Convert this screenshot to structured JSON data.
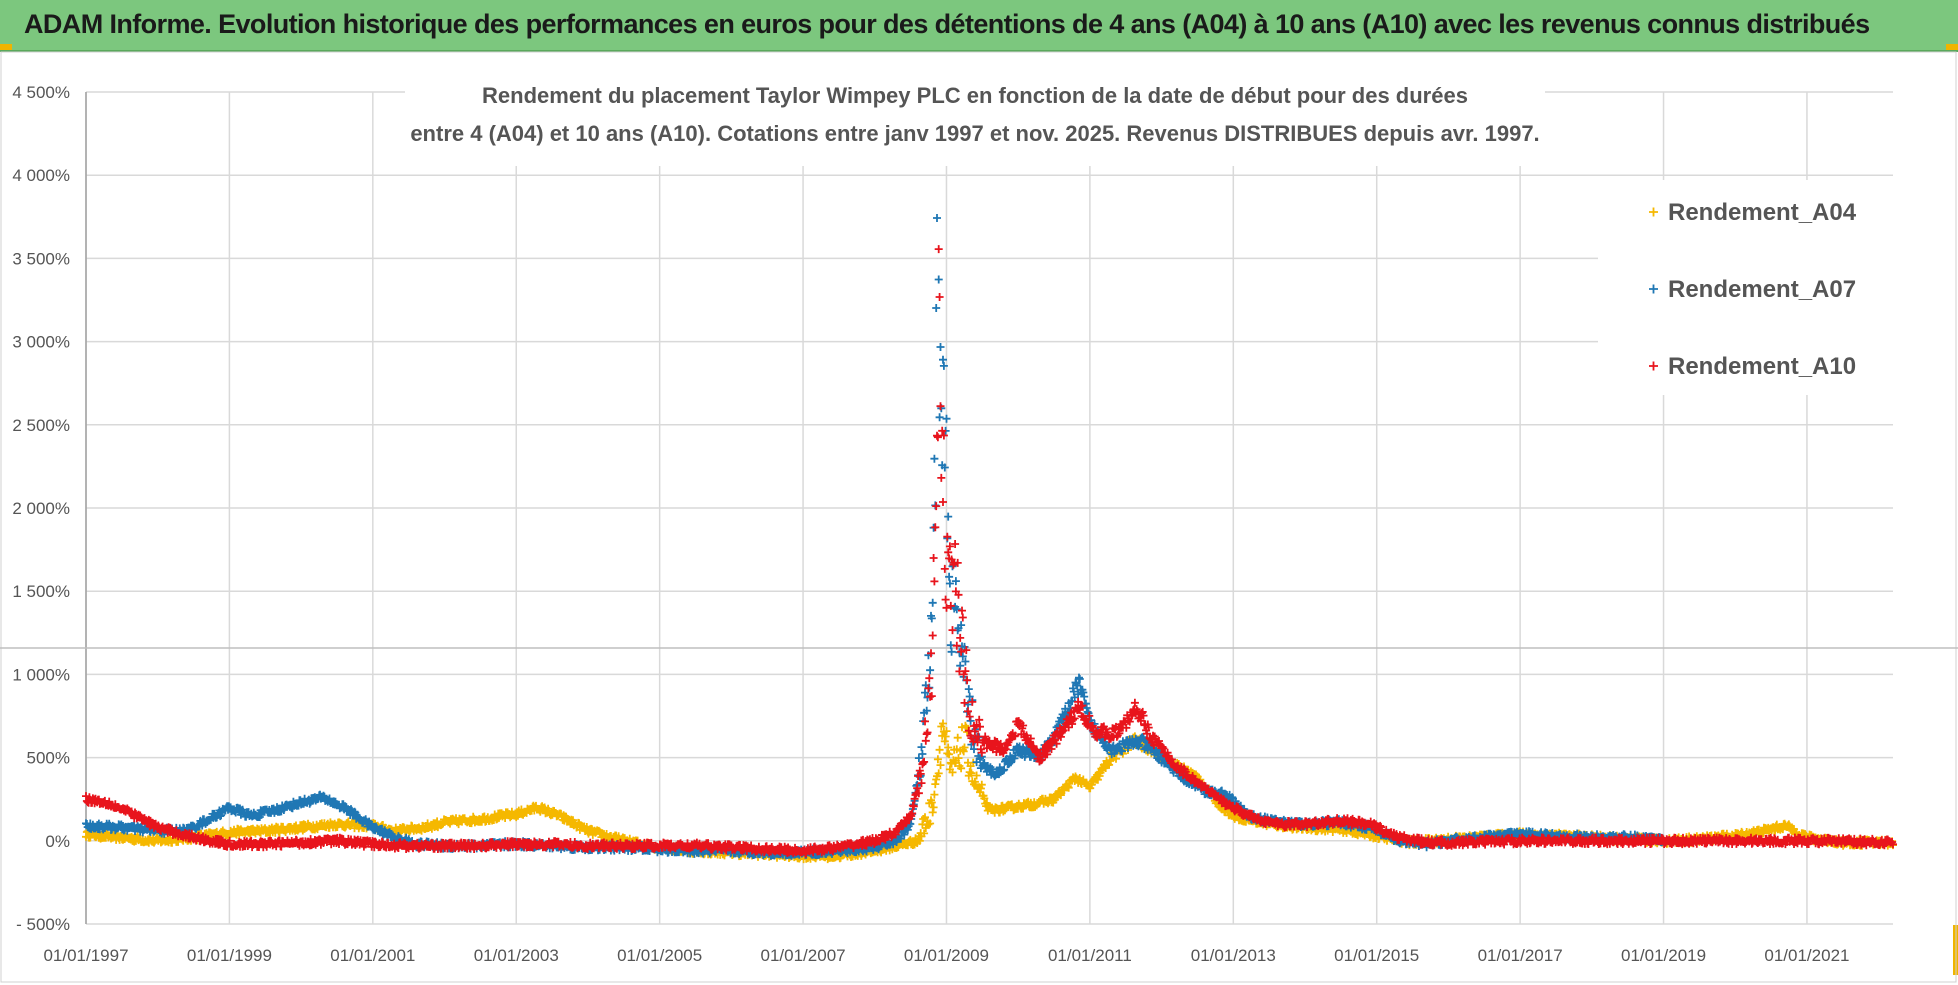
{
  "header": {
    "title": "ADAM Informe. Evolution historique des performances en euros pour des détentions de 4 ans (A04) à 10 ans (A10) avec les revenus connus distribués"
  },
  "colors": {
    "A04": "#f5b800",
    "A07": "#1f77b4",
    "A10": "#e8141c",
    "header_bg": "#7cc77e",
    "grid": "#d9d9d9"
  },
  "chart_data": {
    "type": "scatter",
    "title_line1": "Rendement du placement Taylor Wimpey PLC en fonction de la date de début pour des durées",
    "title_line2": "entre 4 (A04) et 10 ans (A10).  Cotations entre janv 1997 et nov. 2025. Revenus DISTRIBUES depuis avr. 1997.",
    "xlabel": "",
    "ylabel": "",
    "x_range": [
      1997.0,
      2022.2
    ],
    "ylim": [
      -500,
      4500
    ],
    "y_ticks": [
      -500,
      0,
      500,
      1000,
      1500,
      2000,
      2500,
      3000,
      3500,
      4000,
      4500
    ],
    "y_tick_labels": [
      "- 500%",
      "0%",
      "500%",
      "1 000%",
      "1 500%",
      "2 000%",
      "2 500%",
      "3 000%",
      "3 500%",
      "4 000%",
      "4 500%"
    ],
    "x_ticks": [
      1997,
      1999,
      2001,
      2003,
      2005,
      2007,
      2009,
      2011,
      2013,
      2015,
      2017,
      2019,
      2021
    ],
    "x_tick_labels": [
      "01/01/1997",
      "01/01/1999",
      "01/01/2001",
      "01/01/2003",
      "01/01/2005",
      "01/01/2007",
      "01/01/2009",
      "01/01/2011",
      "01/01/2013",
      "01/01/2015",
      "01/01/2017",
      "01/01/2019",
      "01/01/2021"
    ],
    "legend_position": "top-right",
    "series": [
      {
        "name": "Rendement_A04",
        "key": "A04",
        "x_end": 2022.2,
        "points": [
          [
            1997.0,
            40
          ],
          [
            1997.5,
            20
          ],
          [
            1998.0,
            0
          ],
          [
            1998.5,
            20
          ],
          [
            1999.0,
            50
          ],
          [
            1999.5,
            60
          ],
          [
            2000.0,
            80
          ],
          [
            2000.5,
            100
          ],
          [
            2001.0,
            90
          ],
          [
            2001.3,
            60
          ],
          [
            2001.7,
            80
          ],
          [
            2002.0,
            110
          ],
          [
            2002.5,
            130
          ],
          [
            2003.0,
            160
          ],
          [
            2003.3,
            200
          ],
          [
            2003.6,
            150
          ],
          [
            2004.0,
            60
          ],
          [
            2004.5,
            0
          ],
          [
            2005.0,
            -40
          ],
          [
            2005.5,
            -60
          ],
          [
            2006.0,
            -70
          ],
          [
            2006.5,
            -80
          ],
          [
            2007.0,
            -90
          ],
          [
            2007.5,
            -90
          ],
          [
            2008.0,
            -60
          ],
          [
            2008.3,
            -30
          ],
          [
            2008.6,
            0
          ],
          [
            2008.8,
            200
          ],
          [
            2008.95,
            700
          ],
          [
            2009.05,
            400
          ],
          [
            2009.25,
            600
          ],
          [
            2009.4,
            350
          ],
          [
            2009.6,
            180
          ],
          [
            2009.9,
            200
          ],
          [
            2010.2,
            220
          ],
          [
            2010.5,
            250
          ],
          [
            2010.8,
            380
          ],
          [
            2011.0,
            320
          ],
          [
            2011.3,
            500
          ],
          [
            2011.6,
            600
          ],
          [
            2011.9,
            550
          ],
          [
            2012.2,
            450
          ],
          [
            2012.5,
            380
          ],
          [
            2012.8,
            220
          ],
          [
            2013.0,
            150
          ],
          [
            2013.5,
            100
          ],
          [
            2014.0,
            80
          ],
          [
            2014.5,
            70
          ],
          [
            2015.0,
            30
          ],
          [
            2015.5,
            -10
          ],
          [
            2016.0,
            10
          ],
          [
            2016.5,
            20
          ],
          [
            2017.0,
            40
          ],
          [
            2017.5,
            30
          ],
          [
            2018.0,
            20
          ],
          [
            2018.5,
            10
          ],
          [
            2019.0,
            0
          ],
          [
            2019.5,
            10
          ],
          [
            2020.0,
            30
          ],
          [
            2020.4,
            60
          ],
          [
            2020.7,
            90
          ],
          [
            2021.0,
            20
          ],
          [
            2021.5,
            -10
          ],
          [
            2022.2,
            -10
          ]
        ]
      },
      {
        "name": "Rendement_A07",
        "key": "A07",
        "x_end": 2019.0,
        "points": [
          [
            1997.0,
            90
          ],
          [
            1997.5,
            80
          ],
          [
            1998.0,
            60
          ],
          [
            1998.4,
            60
          ],
          [
            1998.8,
            150
          ],
          [
            1999.0,
            200
          ],
          [
            1999.3,
            150
          ],
          [
            1999.6,
            180
          ],
          [
            2000.0,
            230
          ],
          [
            2000.3,
            260
          ],
          [
            2000.6,
            200
          ],
          [
            2001.0,
            80
          ],
          [
            2001.3,
            20
          ],
          [
            2001.6,
            -20
          ],
          [
            2002.0,
            -30
          ],
          [
            2002.5,
            -30
          ],
          [
            2003.0,
            -20
          ],
          [
            2003.5,
            -30
          ],
          [
            2004.0,
            -40
          ],
          [
            2004.5,
            -40
          ],
          [
            2005.0,
            -50
          ],
          [
            2005.5,
            -60
          ],
          [
            2006.0,
            -60
          ],
          [
            2006.5,
            -70
          ],
          [
            2007.0,
            -70
          ],
          [
            2007.5,
            -60
          ],
          [
            2008.0,
            -40
          ],
          [
            2008.3,
            0
          ],
          [
            2008.5,
            100
          ],
          [
            2008.65,
            500
          ],
          [
            2008.8,
            1200
          ],
          [
            2008.85,
            2500
          ],
          [
            2008.88,
            3500
          ],
          [
            2008.92,
            3000
          ],
          [
            2008.97,
            2500
          ],
          [
            2009.05,
            1500
          ],
          [
            2009.15,
            1300
          ],
          [
            2009.3,
            800
          ],
          [
            2009.5,
            450
          ],
          [
            2009.7,
            400
          ],
          [
            2010.0,
            550
          ],
          [
            2010.3,
            500
          ],
          [
            2010.6,
            700
          ],
          [
            2010.85,
            950
          ],
          [
            2011.0,
            700
          ],
          [
            2011.3,
            550
          ],
          [
            2011.7,
            600
          ],
          [
            2012.0,
            500
          ],
          [
            2012.3,
            380
          ],
          [
            2012.6,
            300
          ],
          [
            2012.9,
            280
          ],
          [
            2013.2,
            150
          ],
          [
            2013.5,
            120
          ],
          [
            2014.0,
            100
          ],
          [
            2014.5,
            110
          ],
          [
            2014.9,
            80
          ],
          [
            2015.3,
            0
          ],
          [
            2015.7,
            -20
          ],
          [
            2016.0,
            0
          ],
          [
            2016.5,
            20
          ],
          [
            2017.0,
            40
          ],
          [
            2017.5,
            30
          ],
          [
            2018.0,
            20
          ],
          [
            2018.5,
            20
          ],
          [
            2019.0,
            10
          ]
        ]
      },
      {
        "name": "Rendement_A10",
        "key": "A10",
        "x_end": 2022.2,
        "points": [
          [
            1997.0,
            250
          ],
          [
            1997.3,
            230
          ],
          [
            1997.7,
            150
          ],
          [
            1998.0,
            80
          ],
          [
            1998.5,
            20
          ],
          [
            1999.0,
            -20
          ],
          [
            1999.5,
            -20
          ],
          [
            2000.0,
            -10
          ],
          [
            2000.5,
            0
          ],
          [
            2001.0,
            -20
          ],
          [
            2001.5,
            -30
          ],
          [
            2002.0,
            -30
          ],
          [
            2002.5,
            -30
          ],
          [
            2003.0,
            -20
          ],
          [
            2003.5,
            -20
          ],
          [
            2004.0,
            -30
          ],
          [
            2004.5,
            -30
          ],
          [
            2005.0,
            -30
          ],
          [
            2005.5,
            -30
          ],
          [
            2006.0,
            -40
          ],
          [
            2006.5,
            -50
          ],
          [
            2007.0,
            -60
          ],
          [
            2007.5,
            -40
          ],
          [
            2008.0,
            0
          ],
          [
            2008.3,
            50
          ],
          [
            2008.5,
            150
          ],
          [
            2008.65,
            400
          ],
          [
            2008.8,
            1000
          ],
          [
            2008.85,
            2000
          ],
          [
            2008.9,
            3400
          ],
          [
            2008.95,
            2300
          ],
          [
            2009.0,
            1500
          ],
          [
            2009.1,
            1600
          ],
          [
            2009.2,
            1200
          ],
          [
            2009.35,
            700
          ],
          [
            2009.5,
            600
          ],
          [
            2009.8,
            550
          ],
          [
            2010.0,
            700
          ],
          [
            2010.3,
            500
          ],
          [
            2010.6,
            650
          ],
          [
            2010.85,
            800
          ],
          [
            2011.1,
            650
          ],
          [
            2011.4,
            650
          ],
          [
            2011.65,
            800
          ],
          [
            2011.9,
            600
          ],
          [
            2012.2,
            450
          ],
          [
            2012.5,
            350
          ],
          [
            2012.8,
            250
          ],
          [
            2013.2,
            150
          ],
          [
            2013.6,
            100
          ],
          [
            2014.0,
            100
          ],
          [
            2014.5,
            120
          ],
          [
            2014.9,
            100
          ],
          [
            2015.3,
            20
          ],
          [
            2015.7,
            -10
          ],
          [
            2016.2,
            -10
          ],
          [
            2017.0,
            0
          ],
          [
            2018.0,
            0
          ],
          [
            2019.0,
            0
          ],
          [
            2020.0,
            0
          ],
          [
            2021.0,
            0
          ],
          [
            2022.2,
            -10
          ]
        ]
      }
    ]
  }
}
